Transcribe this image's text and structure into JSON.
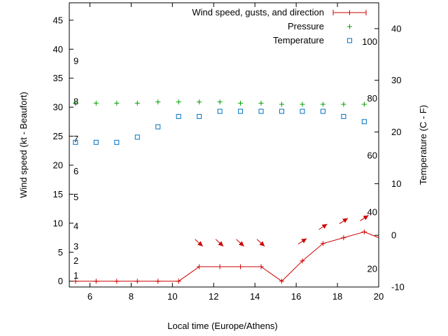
{
  "chart_data": {
    "type": "line",
    "xlabel": "Local time (Europe/Athens)",
    "ylabel": "Wind speed (kt - Beaufort)",
    "y2label": "Temperature (C - F)",
    "xlim": [
      5,
      20
    ],
    "ylim": [
      -1,
      48
    ],
    "y2lim": [
      -10,
      45
    ],
    "x_ticks": [
      6,
      8,
      10,
      12,
      14,
      16,
      18,
      20
    ],
    "y_ticks": [
      0,
      5,
      10,
      15,
      20,
      25,
      30,
      35,
      40,
      45
    ],
    "y2_ticks": [
      -10,
      0,
      10,
      20,
      30,
      40
    ],
    "beaufort_labels": [
      {
        "label": "1",
        "y": 1
      },
      {
        "label": "2",
        "y": 3.5
      },
      {
        "label": "3",
        "y": 6
      },
      {
        "label": "4",
        "y": 9.5
      },
      {
        "label": "5",
        "y": 14.5
      },
      {
        "label": "6",
        "y": 19
      },
      {
        "label": "7",
        "y": 24.5
      },
      {
        "label": "8",
        "y": 31
      },
      {
        "label": "9",
        "y": 38
      }
    ],
    "fahrenheit_labels": [
      {
        "label": "20",
        "y2": -6.5
      },
      {
        "label": "40",
        "y2": 4.5
      },
      {
        "label": "60",
        "y2": 15.5
      },
      {
        "label": "80",
        "y2": 26.5
      },
      {
        "label": "100",
        "y2": 37.5
      }
    ],
    "series": [
      {
        "name": "Wind speed, gusts, and direction",
        "color": "#cc0000",
        "marker": "plus",
        "axis": "y",
        "x": [
          5.3,
          6.3,
          7.3,
          8.3,
          9.3,
          10.3,
          11.3,
          12.3,
          13.3,
          14.3,
          15.3,
          16.3,
          17.3,
          18.3,
          19.3,
          20
        ],
        "values": [
          0,
          0,
          0,
          0,
          0,
          0,
          2.5,
          2.5,
          2.5,
          2.5,
          0,
          3.5,
          6.5,
          7.5,
          8.5,
          7.5
        ]
      },
      {
        "name": "Pressure",
        "color": "#00a000",
        "marker": "plus",
        "axis": "y",
        "x": [
          5.3,
          6.3,
          7.3,
          8.3,
          9.3,
          10.3,
          11.3,
          12.3,
          13.3,
          14.3,
          15.3,
          16.3,
          17.3,
          18.3,
          19.3
        ],
        "values": [
          30.7,
          30.7,
          30.7,
          30.7,
          30.9,
          30.9,
          30.9,
          30.9,
          30.7,
          30.7,
          30.5,
          30.5,
          30.5,
          30.5,
          30.5
        ]
      },
      {
        "name": "Temperature",
        "color": "#0070c0",
        "marker": "square",
        "axis": "y2",
        "x": [
          5.3,
          6.3,
          7.3,
          8.3,
          9.3,
          10.3,
          11.3,
          12.3,
          13.3,
          14.3,
          15.3,
          16.3,
          17.3,
          18.3,
          19.3
        ],
        "values": [
          18,
          18,
          18,
          19,
          21,
          23,
          23,
          24,
          24,
          24,
          24,
          24,
          24,
          23,
          22
        ]
      }
    ],
    "wind_arrows": [
      {
        "x": 11.3,
        "y": 6.5,
        "direction": "down-right"
      },
      {
        "x": 12.3,
        "y": 6.5,
        "direction": "down-right"
      },
      {
        "x": 13.3,
        "y": 6.5,
        "direction": "down-right"
      },
      {
        "x": 14.3,
        "y": 6.5,
        "direction": "down-right"
      },
      {
        "x": 16.3,
        "y": 7,
        "direction": "up-right"
      },
      {
        "x": 17.3,
        "y": 9.5,
        "direction": "up-right"
      },
      {
        "x": 18.3,
        "y": 10.5,
        "direction": "up-right"
      },
      {
        "x": 19.3,
        "y": 11,
        "direction": "up-right"
      }
    ],
    "legend_position": "top-right",
    "grid": false
  }
}
